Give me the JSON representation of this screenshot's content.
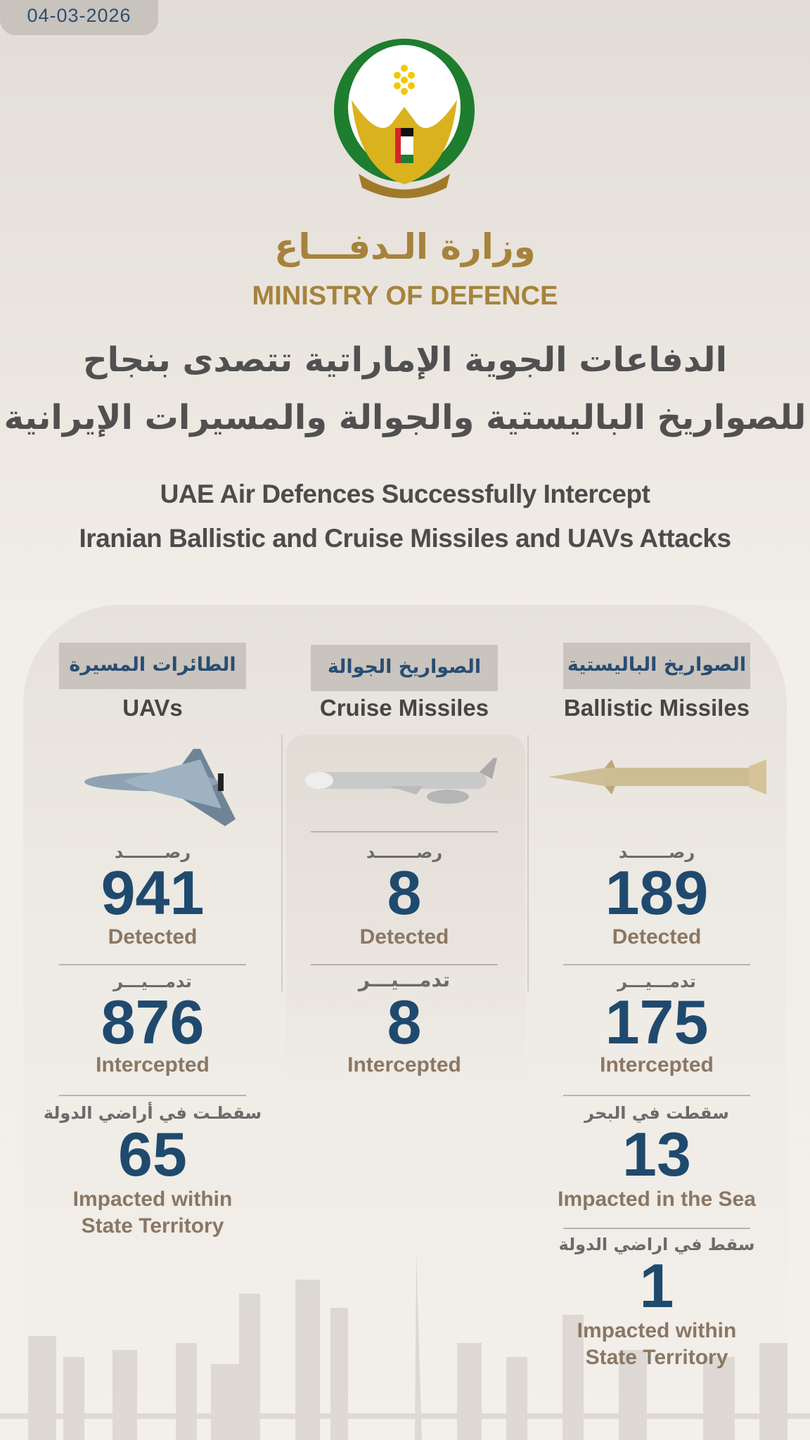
{
  "date": "04-03-2026",
  "header": {
    "ministry_ar": "وزارة الـدفـــاع",
    "ministry_en": "MINISTRY OF DEFENCE",
    "headline_ar": [
      "الدفاعات الجوية الإماراتية تتصدى بنجاح",
      "للصواريخ الباليستية والجوالة والمسيرات الإيرانية"
    ],
    "headline_en": [
      "UAE Air Defences Successfully Intercept",
      "Iranian Ballistic and Cruise Missiles and UAVs Attacks"
    ]
  },
  "colors": {
    "number": "#1f4a6e",
    "gold": "#a6833c",
    "label": "#8a7763"
  },
  "columns": [
    {
      "title_ar": "الطائرات المسيرة",
      "title_en": "UAVs",
      "icon": "drone-image",
      "stats": [
        {
          "label_ar": "رصـــــــد",
          "value": "941",
          "label_en": "Detected"
        },
        {
          "label_ar": "تدمـــيـــر",
          "value": "876",
          "label_en": "Intercepted"
        },
        {
          "label_ar": "سقطـت في أراضي الدولة",
          "value": "65",
          "label_en": [
            "Impacted within",
            "State Territory"
          ]
        }
      ]
    },
    {
      "title_ar": "الصواريخ الجوالة",
      "title_en": "Cruise Missiles",
      "icon": "cruise-missile-image",
      "stats": [
        {
          "label_ar": "رصـــــــد",
          "value": "8",
          "label_en": "Detected"
        },
        {
          "label_ar": "تدمـــيـــر",
          "value": "8",
          "label_en": "Intercepted"
        }
      ]
    },
    {
      "title_ar": "الصواريخ الباليستية",
      "title_en": "Ballistic Missiles",
      "icon": "ballistic-missile-image",
      "stats": [
        {
          "label_ar": "رصـــــــد",
          "value": "189",
          "label_en": "Detected"
        },
        {
          "label_ar": "تدمـــيـــر",
          "value": "175",
          "label_en": "Intercepted"
        },
        {
          "label_ar": "سقطت في البحر",
          "value": "13",
          "label_en": "Impacted in the Sea"
        },
        {
          "label_ar": "سقط في اراضي الدولة",
          "value": "1",
          "label_en": [
            "Impacted within",
            "State Territory"
          ]
        }
      ]
    }
  ]
}
